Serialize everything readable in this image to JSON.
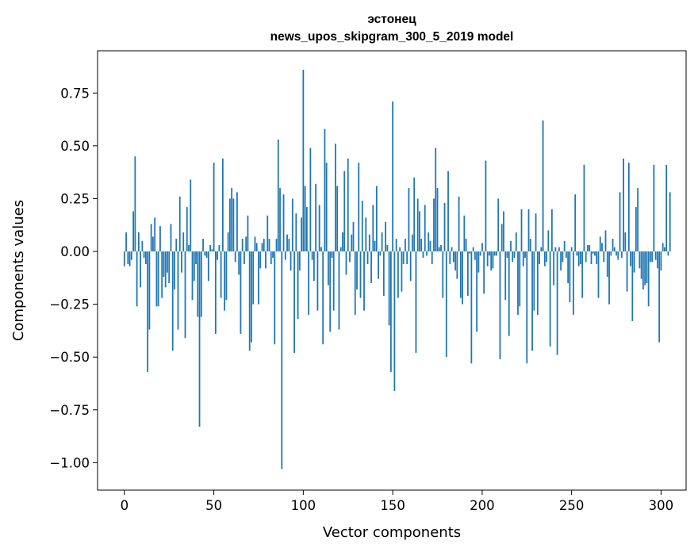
{
  "chart_data": {
    "type": "bar",
    "title": "эстонец",
    "subtitle": "news_upos_skipgram_300_5_2019 model",
    "xlabel": "Vector components",
    "ylabel": "Components values",
    "xlim": [
      -15,
      314
    ],
    "ylim": [
      -1.13,
      0.95
    ],
    "xticks": [
      0,
      50,
      100,
      150,
      200,
      250,
      300
    ],
    "xtick_labels": [
      "0",
      "50",
      "100",
      "150",
      "200",
      "250",
      "300"
    ],
    "yticks": [
      -1.0,
      -0.75,
      -0.5,
      -0.25,
      0.0,
      0.25,
      0.5,
      0.75
    ],
    "ytick_labels": [
      "−1.00",
      "−0.75",
      "−0.50",
      "−0.25",
      "0.00",
      "0.25",
      "0.50",
      "0.75"
    ],
    "grid": false,
    "bar_color": "#1f77b4",
    "values": [
      -0.07,
      0.09,
      -0.06,
      -0.07,
      -0.04,
      0.19,
      0.45,
      -0.26,
      0.09,
      -0.17,
      0.05,
      -0.03,
      -0.06,
      -0.57,
      -0.37,
      0.13,
      0.07,
      0.16,
      -0.26,
      -0.26,
      0.12,
      -0.22,
      -0.12,
      -0.17,
      -0.1,
      -0.15,
      0.13,
      -0.47,
      -0.18,
      0.06,
      -0.37,
      0.26,
      -0.1,
      0.09,
      -0.41,
      0.21,
      0.03,
      0.34,
      -0.23,
      -0.14,
      -0.06,
      -0.31,
      -0.83,
      -0.31,
      0.06,
      -0.02,
      -0.03,
      -0.14,
      0.03,
      0.01,
      0.42,
      -0.39,
      -0.04,
      0.03,
      -0.22,
      0.44,
      -0.28,
      -0.23,
      0.09,
      0.25,
      0.3,
      0.25,
      -0.05,
      0.28,
      -0.11,
      -0.39,
      0.06,
      -0.06,
      0.07,
      0.17,
      -0.47,
      -0.43,
      -0.25,
      0.07,
      0.04,
      -0.25,
      -0.08,
      0.04,
      0.06,
      -0.08,
      0.17,
      0.06,
      -0.06,
      -0.03,
      -0.44,
      0.06,
      0.53,
      0.3,
      -1.03,
      0.27,
      -0.04,
      0.08,
      0.06,
      -0.09,
      0.25,
      -0.48,
      0.18,
      -0.32,
      -0.09,
      0.16,
      0.86,
      0.31,
      0.21,
      -0.3,
      0.49,
      -0.04,
      -0.14,
      0.32,
      -0.28,
      0.22,
      0.02,
      -0.44,
      0.58,
      0.42,
      -0.16,
      -0.38,
      -0.03,
      -0.28,
      0.51,
      0.31,
      -0.37,
      0.02,
      0.09,
      0.38,
      -0.11,
      0.44,
      -0.05,
      0.08,
      0.14,
      -0.3,
      -0.18,
      0.42,
      -0.22,
      0.24,
      -0.28,
      0.16,
      -0.06,
      0.08,
      -0.15,
      0.22,
      0.05,
      0.31,
      -0.13,
      -0.02,
      0.09,
      -0.21,
      0.14,
      0.03,
      -0.35,
      -0.57,
      0.71,
      -0.66,
      0.06,
      -0.22,
      0.02,
      -0.19,
      -0.06,
      0.06,
      -0.06,
      0.3,
      -0.14,
      0.08,
      0.35,
      -0.48,
      0.25,
      0.19,
      0.06,
      -0.03,
      0.22,
      -0.02,
      0.09,
      0.05,
      -0.06,
      0.25,
      0.49,
      0.3,
      0.02,
      0.03,
      -0.22,
      0.23,
      -0.5,
      0.38,
      -0.06,
      0.02,
      -0.05,
      -0.09,
      -0.13,
      0.26,
      -0.22,
      -0.25,
      0.17,
      0.06,
      -0.21,
      -0.01,
      -0.53,
      0.02,
      -0.04,
      -0.38,
      -0.1,
      -0.02,
      0.04,
      -0.2,
      0.43,
      -0.07,
      -0.02,
      -0.09,
      -0.08,
      -0.02,
      -0.02,
      0.25,
      -0.51,
      0.13,
      0.19,
      -0.23,
      -0.03,
      -0.4,
      0.05,
      -0.05,
      -0.03,
      0.09,
      -0.3,
      -0.26,
      0.2,
      -0.07,
      -0.03,
      -0.53,
      0.2,
      0.06,
      -0.47,
      -0.28,
      0.18,
      -0.3,
      -0.06,
      0.02,
      0.62,
      -0.07,
      -0.05,
      0.1,
      -0.45,
      0.2,
      -0.16,
      0.02,
      -0.49,
      0.02,
      -0.09,
      -0.05,
      0.05,
      -0.03,
      -0.15,
      -0.24,
      0.02,
      -0.3,
      0.27,
      -0.02,
      -0.07,
      -0.06,
      -0.22,
      0.41,
      -0.05,
      0.03,
      0.03,
      -0.06,
      -0.01,
      -0.02,
      -0.06,
      -0.22,
      0.07,
      0.04,
      -0.05,
      0.1,
      -0.12,
      -0.25,
      -0.02,
      0.06,
      0.02,
      -0.02,
      -0.04,
      0.28,
      -0.03,
      0.44,
      0.09,
      -0.19,
      0.42,
      -0.07,
      -0.33,
      -0.1,
      0.21,
      0.3,
      -0.08,
      -0.13,
      -0.18,
      -0.16,
      -0.15,
      -0.26,
      -0.05,
      -0.05,
      0.41,
      -0.04,
      -0.08,
      -0.43,
      -0.09,
      0.04,
      0.02,
      0.41,
      -0.02,
      0.28
    ]
  }
}
